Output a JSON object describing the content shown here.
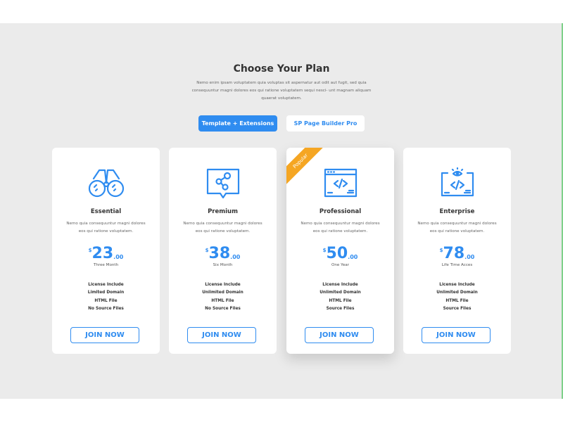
{
  "header": {
    "title": "Choose Your Plan",
    "subtitle": "Nemo enim ipsam voluptatem quia voluptas sit aspernatur aut odit aut fugit, sed quia consequuntur magni dolores eos qui ratione voluptatem sequi nesci- unt magnam aliquam quaerat voluptatem."
  },
  "tabs": [
    {
      "label": "Template + Extensions",
      "active": true
    },
    {
      "label": "SP Page Builder Pro",
      "active": false
    }
  ],
  "accent": "#2f8cf0",
  "badge_color": "#f5a623",
  "plans": [
    {
      "name": "Essential",
      "icon": "binoculars-icon",
      "desc": "Nemo quia consequuntur magni dolores eos qui ratione voluptatem.",
      "currency": "$",
      "amount": "23",
      "cents": ".00",
      "period": "Three Month",
      "features": [
        "License Include",
        "Limited Domain",
        "HTML File",
        "No Source Files"
      ],
      "button": "JOIN NOW"
    },
    {
      "name": "Premium",
      "icon": "share-chat-icon",
      "desc": "Nemo quia consequuntur magni dolores eos qui ratione voluptatem.",
      "currency": "$",
      "amount": "38",
      "cents": ".00",
      "period": "Six Month",
      "features": [
        "License Include",
        "Unlimited Domain",
        "HTML File",
        "No Source Files"
      ],
      "button": "JOIN NOW"
    },
    {
      "name": "Professional",
      "icon": "code-window-icon",
      "badge": "Popular",
      "desc": "Nemo quia consequuntur magni dolores eos qui ratione voluptatem.",
      "currency": "$",
      "amount": "50",
      "cents": ".00",
      "period": "One Year",
      "features": [
        "License Include",
        "Unlimited Domain",
        "HTML File",
        "Source Files"
      ],
      "button": "JOIN NOW"
    },
    {
      "name": "Enterprise",
      "icon": "code-eye-icon",
      "desc": "Nemo quia consequuntur magni dolores eos qui ratione voluptatem.",
      "currency": "$",
      "amount": "78",
      "cents": ".00",
      "period": "Life Time Acces",
      "features": [
        "License Include",
        "Unlimited Domain",
        "HTML File",
        "Source Files"
      ],
      "button": "JOIN NOW"
    }
  ]
}
